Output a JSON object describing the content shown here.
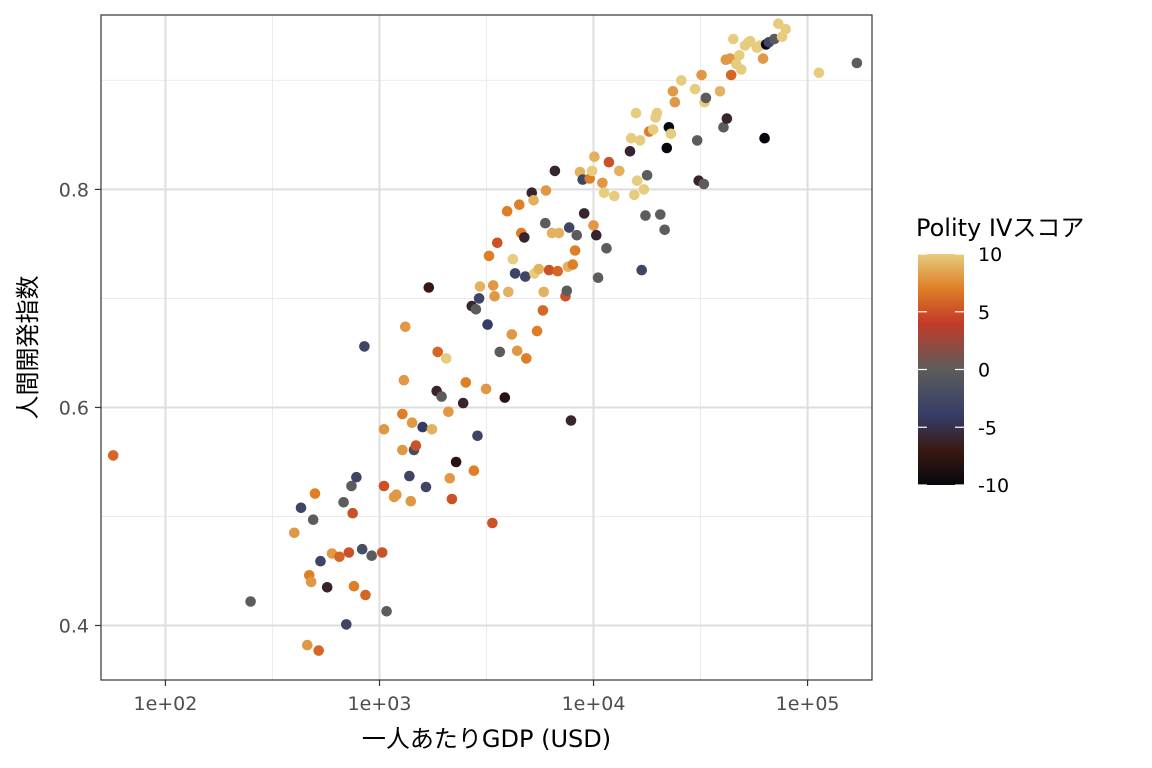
{
  "chart_data": {
    "type": "scatter",
    "title": "",
    "xlabel": "一人あたりGDP (USD)",
    "ylabel": "人間開発指数",
    "x_scale": "log10",
    "xlim": [
      50,
      200000
    ],
    "ylim": [
      0.35,
      0.96
    ],
    "x_ticks": [
      {
        "value": 100,
        "label": "1e+02"
      },
      {
        "value": 1000,
        "label": "1e+03"
      },
      {
        "value": 10000,
        "label": "1e+04"
      },
      {
        "value": 100000,
        "label": "1e+05"
      }
    ],
    "y_ticks": [
      {
        "value": 0.4,
        "label": "0.4"
      },
      {
        "value": 0.6,
        "label": "0.6"
      },
      {
        "value": 0.8,
        "label": "0.8"
      }
    ],
    "y_minor_ticks": [
      0.5,
      0.7,
      0.9
    ],
    "grid": true,
    "legend": {
      "title": "Polity IVスコア",
      "placement": "right",
      "min": -10,
      "max": 10,
      "labels": [
        {
          "value": 10,
          "label": "10"
        },
        {
          "value": 5,
          "label": "5"
        },
        {
          "value": 0,
          "label": "0"
        },
        {
          "value": -5,
          "label": "-5"
        },
        {
          "value": -10,
          "label": "-10"
        }
      ]
    },
    "color_stops": [
      {
        "value": -10,
        "color": "#05080d"
      },
      {
        "value": -7,
        "color": "#3a1812"
      },
      {
        "value": -4,
        "color": "#353d66"
      },
      {
        "value": 0,
        "color": "#5c5c5c"
      },
      {
        "value": 4,
        "color": "#c23a27"
      },
      {
        "value": 7,
        "color": "#de7e26"
      },
      {
        "value": 10,
        "color": "#e6cc7f"
      }
    ],
    "points": [
      [
        57,
        0.556,
        6
      ],
      [
        250,
        0.422,
        0
      ],
      [
        400,
        0.485,
        8
      ],
      [
        430,
        0.508,
        -3
      ],
      [
        460,
        0.382,
        8
      ],
      [
        470,
        0.446,
        7
      ],
      [
        480,
        0.44,
        8
      ],
      [
        490,
        0.497,
        0
      ],
      [
        500,
        0.521,
        7
      ],
      [
        520,
        0.377,
        6
      ],
      [
        530,
        0.459,
        -3
      ],
      [
        570,
        0.435,
        -6
      ],
      [
        600,
        0.466,
        8
      ],
      [
        650,
        0.463,
        6
      ],
      [
        680,
        0.513,
        0
      ],
      [
        700,
        0.401,
        -3
      ],
      [
        720,
        0.467,
        5
      ],
      [
        740,
        0.528,
        0
      ],
      [
        750,
        0.503,
        5
      ],
      [
        760,
        0.436,
        7
      ],
      [
        780,
        0.536,
        -3
      ],
      [
        830,
        0.47,
        -2
      ],
      [
        850,
        0.656,
        -3
      ],
      [
        860,
        0.428,
        6
      ],
      [
        920,
        0.464,
        0
      ],
      [
        1030,
        0.467,
        5
      ],
      [
        1050,
        0.528,
        5
      ],
      [
        1050,
        0.58,
        8
      ],
      [
        1080,
        0.413,
        0
      ],
      [
        1170,
        0.518,
        8
      ],
      [
        1200,
        0.52,
        8
      ],
      [
        1280,
        0.594,
        7
      ],
      [
        1280,
        0.561,
        8
      ],
      [
        1300,
        0.625,
        8
      ],
      [
        1320,
        0.674,
        8
      ],
      [
        1380,
        0.537,
        -3
      ],
      [
        1400,
        0.514,
        8
      ],
      [
        1420,
        0.586,
        8
      ],
      [
        1450,
        0.561,
        -2
      ],
      [
        1480,
        0.565,
        5
      ],
      [
        1590,
        0.582,
        -4
      ],
      [
        1650,
        0.527,
        -3
      ],
      [
        1700,
        0.71,
        -7
      ],
      [
        1760,
        0.58,
        9
      ],
      [
        1850,
        0.615,
        -6
      ],
      [
        1870,
        0.651,
        6
      ],
      [
        1950,
        0.61,
        0
      ],
      [
        2050,
        0.645,
        10
      ],
      [
        2100,
        0.596,
        8
      ],
      [
        2130,
        0.535,
        8
      ],
      [
        2180,
        0.516,
        5
      ],
      [
        2280,
        0.55,
        -8
      ],
      [
        2460,
        0.604,
        -6
      ],
      [
        2530,
        0.623,
        7
      ],
      [
        2700,
        0.693,
        -6
      ],
      [
        2760,
        0.542,
        7
      ],
      [
        2820,
        0.69,
        0
      ],
      [
        2870,
        0.574,
        -3
      ],
      [
        2920,
        0.7,
        -3
      ],
      [
        2950,
        0.711,
        9
      ],
      [
        3150,
        0.617,
        8
      ],
      [
        3200,
        0.676,
        -4
      ],
      [
        3250,
        0.739,
        7
      ],
      [
        3370,
        0.494,
        5
      ],
      [
        3400,
        0.712,
        8
      ],
      [
        3450,
        0.702,
        8
      ],
      [
        3550,
        0.751,
        5
      ],
      [
        3650,
        0.651,
        0
      ],
      [
        3850,
        0.609,
        -8
      ],
      [
        3950,
        0.78,
        7
      ],
      [
        4000,
        0.706,
        9
      ],
      [
        4150,
        0.667,
        8
      ],
      [
        4200,
        0.736,
        10
      ],
      [
        4300,
        0.723,
        -3
      ],
      [
        4400,
        0.652,
        8
      ],
      [
        4500,
        0.786,
        7
      ],
      [
        4600,
        0.76,
        7
      ],
      [
        4750,
        0.756,
        -6
      ],
      [
        4800,
        0.72,
        -3
      ],
      [
        4850,
        0.645,
        7
      ],
      [
        5150,
        0.797,
        -6
      ],
      [
        5250,
        0.79,
        9
      ],
      [
        5300,
        0.723,
        10
      ],
      [
        5450,
        0.67,
        7
      ],
      [
        5550,
        0.727,
        9
      ],
      [
        5800,
        0.689,
        6
      ],
      [
        5850,
        0.706,
        9
      ],
      [
        5950,
        0.769,
        0
      ],
      [
        6000,
        0.799,
        8
      ],
      [
        6200,
        0.726,
        5
      ],
      [
        6400,
        0.76,
        9
      ],
      [
        6600,
        0.817,
        -6
      ],
      [
        6800,
        0.725,
        6
      ],
      [
        6900,
        0.76,
        9
      ],
      [
        7400,
        0.702,
        5
      ],
      [
        7500,
        0.707,
        0
      ],
      [
        7600,
        0.729,
        9
      ],
      [
        7700,
        0.765,
        -3
      ],
      [
        7850,
        0.588,
        -6
      ],
      [
        8000,
        0.731,
        7
      ],
      [
        8200,
        0.744,
        7
      ],
      [
        8350,
        0.758,
        0
      ],
      [
        8650,
        0.816,
        9
      ],
      [
        8900,
        0.809,
        -3
      ],
      [
        9050,
        0.778,
        -6
      ],
      [
        9600,
        0.81,
        7
      ],
      [
        9850,
        0.817,
        10
      ],
      [
        10000,
        0.767,
        8
      ],
      [
        10100,
        0.83,
        9
      ],
      [
        10300,
        0.758,
        -6
      ],
      [
        10500,
        0.719,
        0
      ],
      [
        11000,
        0.806,
        8
      ],
      [
        11200,
        0.797,
        10
      ],
      [
        11500,
        0.746,
        0
      ],
      [
        11800,
        0.825,
        5
      ],
      [
        12500,
        0.794,
        10
      ],
      [
        13200,
        0.817,
        9
      ],
      [
        14800,
        0.835,
        -6
      ],
      [
        15000,
        0.847,
        10
      ],
      [
        15500,
        0.795,
        10
      ],
      [
        15800,
        0.87,
        10
      ],
      [
        16000,
        0.808,
        10
      ],
      [
        16500,
        0.845,
        10
      ],
      [
        16800,
        0.726,
        -3
      ],
      [
        17200,
        0.8,
        10
      ],
      [
        17500,
        0.776,
        0
      ],
      [
        17800,
        0.813,
        0
      ],
      [
        18200,
        0.853,
        7
      ],
      [
        19000,
        0.855,
        10
      ],
      [
        19500,
        0.866,
        10
      ],
      [
        19800,
        0.87,
        10
      ],
      [
        20500,
        0.777,
        0
      ],
      [
        21500,
        0.763,
        0
      ],
      [
        22000,
        0.838,
        -10
      ],
      [
        22500,
        0.857,
        -10
      ],
      [
        23000,
        0.851,
        10
      ],
      [
        23500,
        0.89,
        8
      ],
      [
        24000,
        0.88,
        8
      ],
      [
        25700,
        0.9,
        10
      ],
      [
        29800,
        0.892,
        10
      ],
      [
        30500,
        0.845,
        0
      ],
      [
        31000,
        0.808,
        -6
      ],
      [
        32000,
        0.905,
        8
      ],
      [
        32800,
        0.805,
        0
      ],
      [
        33000,
        0.88,
        10
      ],
      [
        33500,
        0.884,
        0
      ],
      [
        39000,
        0.89,
        9
      ],
      [
        40500,
        0.857,
        0
      ],
      [
        41500,
        0.919,
        8
      ],
      [
        42000,
        0.865,
        -6
      ],
      [
        43500,
        0.92,
        8
      ],
      [
        44000,
        0.905,
        6
      ],
      [
        45000,
        0.938,
        10
      ],
      [
        46500,
        0.915,
        10
      ],
      [
        48000,
        0.923,
        10
      ],
      [
        49000,
        0.91,
        10
      ],
      [
        51000,
        0.932,
        10
      ],
      [
        53000,
        0.935,
        10
      ],
      [
        54000,
        0.936,
        10
      ],
      [
        58000,
        0.93,
        10
      ],
      [
        60000,
        0.932,
        10
      ],
      [
        62000,
        0.92,
        8
      ],
      [
        63000,
        0.847,
        -10
      ],
      [
        64000,
        0.933,
        -10
      ],
      [
        66000,
        0.935,
        -3
      ],
      [
        70000,
        0.938,
        0
      ],
      [
        73000,
        0.952,
        10
      ],
      [
        76000,
        0.94,
        10
      ],
      [
        79000,
        0.947,
        10
      ],
      [
        113000,
        0.907,
        10
      ],
      [
        170000,
        0.916,
        0
      ]
    ]
  }
}
